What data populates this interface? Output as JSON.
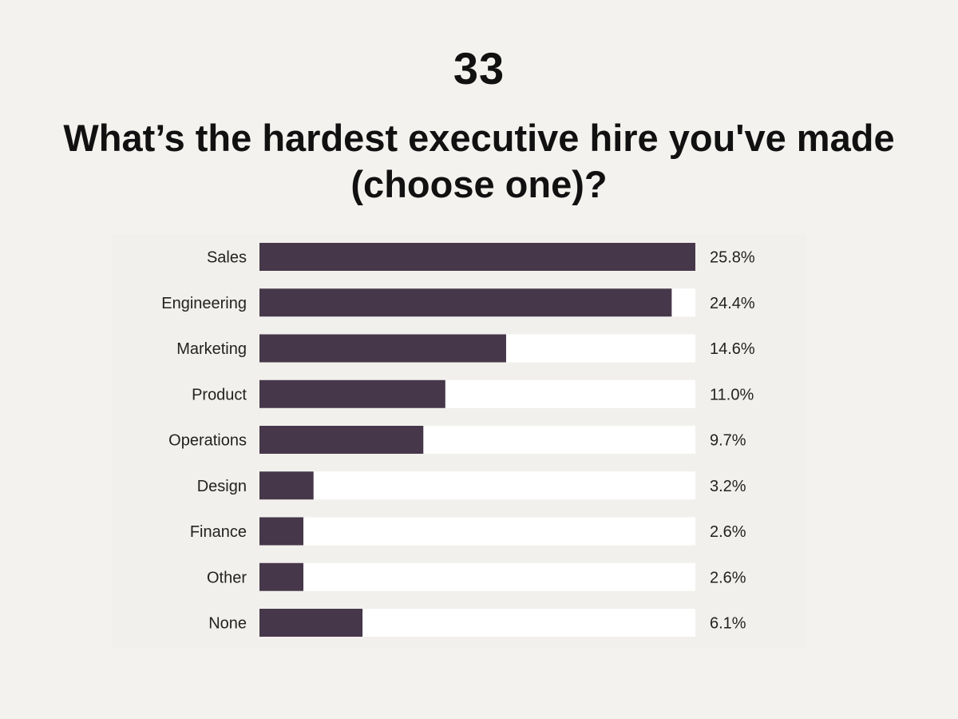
{
  "page": {
    "number": "33",
    "title": "What’s the hardest executive hire you've made (choose one)?"
  },
  "chart_data": {
    "type": "bar",
    "orientation": "horizontal",
    "title": "What’s the hardest executive hire you've made (choose one)?",
    "categories": [
      "Sales",
      "Engineering",
      "Marketing",
      "Product",
      "Operations",
      "Design",
      "Finance",
      "Other",
      "None"
    ],
    "values": [
      25.8,
      24.4,
      14.6,
      11.0,
      9.7,
      3.2,
      2.6,
      2.6,
      6.1
    ],
    "value_labels": [
      "25.8%",
      "24.4%",
      "14.6%",
      "11.0%",
      "9.7%",
      "3.2%",
      "2.6%",
      "2.6%",
      "6.1%"
    ],
    "xlim": [
      0,
      25.8
    ],
    "xlabel": "",
    "ylabel": "",
    "grid": false,
    "legend": "none",
    "colors": {
      "bar": "#46374a",
      "track": "#ffffff",
      "text": "#222222"
    }
  }
}
